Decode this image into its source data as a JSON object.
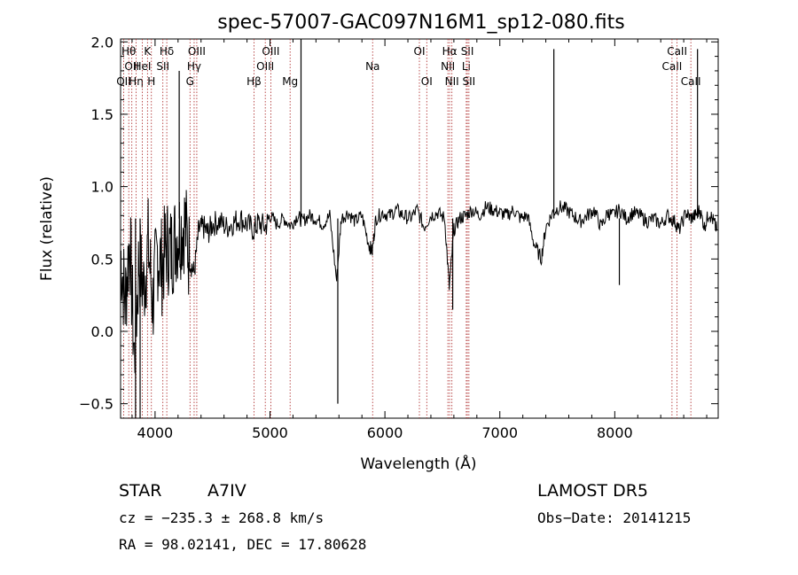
{
  "chart_data": {
    "type": "line",
    "title": "spec-57007-GAC097N16M1_sp12-080.fits",
    "xlabel": "Wavelength (Å)",
    "ylabel": "Flux (relative)",
    "xlim": [
      3700,
      8900
    ],
    "ylim": [
      -0.6,
      2.02
    ],
    "xticks": [
      4000,
      5000,
      6000,
      7000,
      8000
    ],
    "xtick_labels": [
      "4000",
      "5000",
      "6000",
      "7000",
      "8000"
    ],
    "yticks": [
      -0.5,
      0.0,
      0.5,
      1.0,
      1.5,
      2.0
    ],
    "ytick_labels": [
      "−0.5",
      "0.0",
      "0.5",
      "1.0",
      "1.5",
      "2.0"
    ],
    "grid": false,
    "line_color": "#000000",
    "marker_line_color": "#aa2222",
    "series": [
      {
        "values_note": "",
        "x": [
          3700,
          3740,
          3780,
          3820,
          3860,
          3900,
          3940,
          3980,
          4020,
          4060,
          4100,
          4140,
          4180,
          4220,
          4260,
          4300,
          4340,
          4380,
          4420,
          4460,
          4500,
          4560,
          4620,
          4680,
          4740,
          4800,
          4860,
          4900,
          4960,
          5000,
          5060,
          5120,
          5180,
          5240,
          5280,
          5340,
          5400,
          5460,
          5520,
          5580,
          5620,
          5680,
          5740,
          5800,
          5860,
          5890,
          5920,
          5980,
          6040,
          6100,
          6160,
          6220,
          6280,
          6340,
          6400,
          6460,
          6520,
          6560,
          6600,
          6650,
          6700,
          6760,
          6820,
          6880,
          6940,
          7000,
          7060,
          7120,
          7180,
          7240,
          7300,
          7360,
          7400,
          7460,
          7520,
          7580,
          7640,
          7700,
          7760,
          7820,
          7880,
          7940,
          7980,
          8040,
          8100,
          8160,
          8220,
          8280,
          8340,
          8400,
          8460,
          8520,
          8560,
          8620,
          8660,
          8700,
          8740,
          8780,
          8820,
          8860,
          8890
        ],
        "y": [
          0.55,
          0.2,
          0.65,
          -0.2,
          0.5,
          0.3,
          0.6,
          0.2,
          0.55,
          0.45,
          0.6,
          0.55,
          0.65,
          0.7,
          0.75,
          0.5,
          0.4,
          0.7,
          0.72,
          0.68,
          0.74,
          0.76,
          0.72,
          0.75,
          0.78,
          0.74,
          0.7,
          0.75,
          0.72,
          0.8,
          0.74,
          0.78,
          0.73,
          0.8,
          0.76,
          0.8,
          0.78,
          0.74,
          0.8,
          0.35,
          0.78,
          0.82,
          0.76,
          0.8,
          0.6,
          0.55,
          0.78,
          0.82,
          0.8,
          0.84,
          0.8,
          0.78,
          0.84,
          0.72,
          0.8,
          0.82,
          0.78,
          0.3,
          0.7,
          0.78,
          0.8,
          0.84,
          0.8,
          0.86,
          0.84,
          0.82,
          0.8,
          0.84,
          0.78,
          0.8,
          0.6,
          0.5,
          0.72,
          0.82,
          0.86,
          0.84,
          0.8,
          0.76,
          0.8,
          0.84,
          0.72,
          0.82,
          0.8,
          0.84,
          0.78,
          0.82,
          0.8,
          0.76,
          0.78,
          0.74,
          0.8,
          0.76,
          0.7,
          0.82,
          0.78,
          0.8,
          0.84,
          0.72,
          0.82,
          0.76,
          0.7
        ]
      }
    ],
    "spikes": [
      {
        "x": 4210,
        "y": 1.8
      },
      {
        "x": 5270,
        "y": 2.02
      },
      {
        "x": 5590,
        "y": -0.5
      },
      {
        "x": 7470,
        "y": 1.95
      },
      {
        "x": 8720,
        "y": 1.95
      },
      {
        "x": 8040,
        "y": 0.32
      },
      {
        "x": 3830,
        "y": -0.6
      },
      {
        "x": 3870,
        "y": -0.6
      },
      {
        "x": 6590,
        "y": 0.15
      }
    ],
    "line_markers": [
      {
        "x": 3727,
        "label": "OII",
        "row": 3
      },
      {
        "x": 3771,
        "label": "Hθ",
        "row": 1
      },
      {
        "x": 3798,
        "label": "OII",
        "row": 2
      },
      {
        "x": 3835,
        "label": "Hη",
        "row": 3
      },
      {
        "x": 3889,
        "label": "HeI",
        "row": 2
      },
      {
        "x": 3934,
        "label": "K",
        "row": 1
      },
      {
        "x": 3968,
        "label": "H",
        "row": 3
      },
      {
        "x": 4068,
        "label": "SII",
        "row": 2
      },
      {
        "x": 4102,
        "label": "Hδ",
        "row": 1
      },
      {
        "x": 4304,
        "label": "G",
        "row": 3
      },
      {
        "x": 4340,
        "label": "Hγ",
        "row": 2
      },
      {
        "x": 4363,
        "label": "OIII",
        "row": 1
      },
      {
        "x": 4861,
        "label": "Hβ",
        "row": 3
      },
      {
        "x": 4959,
        "label": "OIII",
        "row": 2
      },
      {
        "x": 5007,
        "label": "OIII",
        "row": 1
      },
      {
        "x": 5175,
        "label": "Mg",
        "row": 3
      },
      {
        "x": 5893,
        "label": "Na",
        "row": 2
      },
      {
        "x": 6300,
        "label": "OI",
        "row": 1
      },
      {
        "x": 6364,
        "label": "OI",
        "row": 3
      },
      {
        "x": 6548,
        "label": "NII",
        "row": 2
      },
      {
        "x": 6563,
        "label": "Hα",
        "row": 1
      },
      {
        "x": 6583,
        "label": "NII",
        "row": 3
      },
      {
        "x": 6708,
        "label": "Li",
        "row": 2
      },
      {
        "x": 6717,
        "label": "SII",
        "row": 1
      },
      {
        "x": 6731,
        "label": "SII",
        "row": 3
      },
      {
        "x": 8498,
        "label": "CaII",
        "row": 2
      },
      {
        "x": 8542,
        "label": "CaII",
        "row": 1
      },
      {
        "x": 8662,
        "label": "CaII",
        "row": 3
      }
    ]
  },
  "info": {
    "object_class": "STAR",
    "subclass": "A7IV",
    "survey": "LAMOST  DR5",
    "cz": "cz = −235.3 ± 268.8 km/s",
    "obs_date": "Obs−Date: 20141215",
    "coords": "RA =  98.02141, DEC =  17.80628"
  }
}
